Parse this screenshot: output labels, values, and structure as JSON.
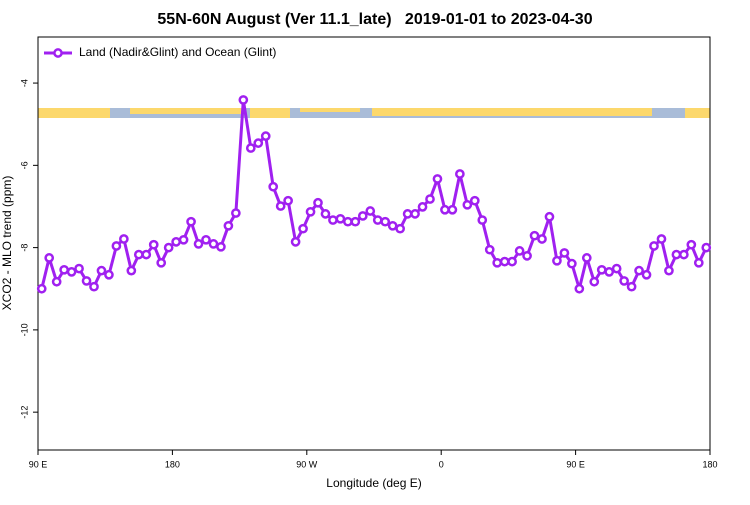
{
  "chart_data": {
    "type": "line",
    "title": "55N-60N August (Ver 11.1_late)   2019-01-01 to 2023-04-30",
    "x_label": "Longitude (deg E)",
    "y_label": "XCO2 - MLO trend (ppm)",
    "x": [
      92.5,
      97.5,
      102.5,
      107.5,
      112.5,
      117.5,
      122.5,
      127.5,
      132.5,
      137.5,
      142.5,
      147.5,
      152.5,
      157.5,
      162.5,
      167.5,
      172.5,
      177.5,
      182.5,
      187.5,
      192.5,
      197.5,
      202.5,
      207.5,
      212.5,
      217.5,
      222.5,
      227.5,
      232.5,
      237.5,
      242.5,
      247.5,
      252.5,
      257.5,
      262.5,
      267.5,
      272.5,
      277.5,
      282.5,
      287.5,
      292.5,
      297.5,
      302.5,
      307.5,
      312.5,
      317.5,
      322.5,
      327.5,
      332.5,
      337.5,
      342.5,
      347.5,
      352.5,
      357.5,
      362.5,
      367.5,
      372.5,
      377.5,
      382.5,
      387.5,
      392.5,
      397.5,
      402.5,
      407.5,
      412.5,
      417.5,
      422.5,
      427.5,
      432.5,
      437.5,
      442.5,
      447.5,
      452.5,
      457.5,
      462.5,
      467.5,
      472.5,
      477.5,
      482.5,
      487.5,
      492.5,
      497.5,
      502.5,
      507.5,
      512.5,
      517.5,
      522.5,
      527.5,
      532.5,
      537.5
    ],
    "series": [
      {
        "name": "Land (Nadir&Glint) and Ocean (Glint)",
        "color": "#a020f0",
        "values": [
          -9.0,
          -8.25,
          -8.83,
          -8.54,
          -8.59,
          -8.51,
          -8.81,
          -8.95,
          -8.56,
          -8.66,
          -7.96,
          -7.79,
          -8.56,
          -8.17,
          -8.17,
          -7.93,
          -8.37,
          -8.0,
          -7.86,
          -7.81,
          -7.37,
          -7.91,
          -7.81,
          -7.91,
          -7.98,
          -7.47,
          -7.16,
          -4.41,
          -5.58,
          -5.46,
          -5.29,
          -6.52,
          -6.99,
          -6.86,
          -7.86,
          -7.54,
          -7.13,
          -6.91,
          -7.18,
          -7.33,
          -7.3,
          -7.37,
          -7.37,
          -7.23,
          -7.11,
          -7.33,
          -7.37,
          -7.47,
          -7.54,
          -7.18,
          -7.18,
          -7.01,
          -6.82,
          -6.33,
          -7.08,
          -7.08,
          -6.21,
          -6.96,
          -6.86,
          -7.33,
          -8.05,
          -8.37,
          -8.34,
          -8.34,
          -8.08,
          -8.2,
          -7.71,
          -7.79,
          -7.25,
          -8.32,
          -8.13,
          -8.39,
          -9.0,
          -8.25,
          -8.83,
          -8.54,
          -8.59,
          -8.51,
          -8.81,
          -8.95,
          -8.56,
          -8.66,
          -7.96,
          -7.79,
          -8.56,
          -8.17,
          -8.17,
          -7.93,
          -8.37,
          -8.0
        ]
      }
    ],
    "xlim": [
      90,
      540
    ],
    "xticks": [
      {
        "value": 90,
        "label": "90 E"
      },
      180,
      {
        "value": 270,
        "label": "90 W"
      },
      {
        "value": 360,
        "label": "0"
      },
      {
        "value": 450,
        "label": "90 E"
      },
      {
        "value": 540,
        "label": "180"
      }
    ],
    "ylim": [
      -12.92,
      -2.88
    ],
    "yticks": [
      -12,
      -10,
      -8,
      -6,
      -4
    ],
    "legend": "upper-left"
  }
}
